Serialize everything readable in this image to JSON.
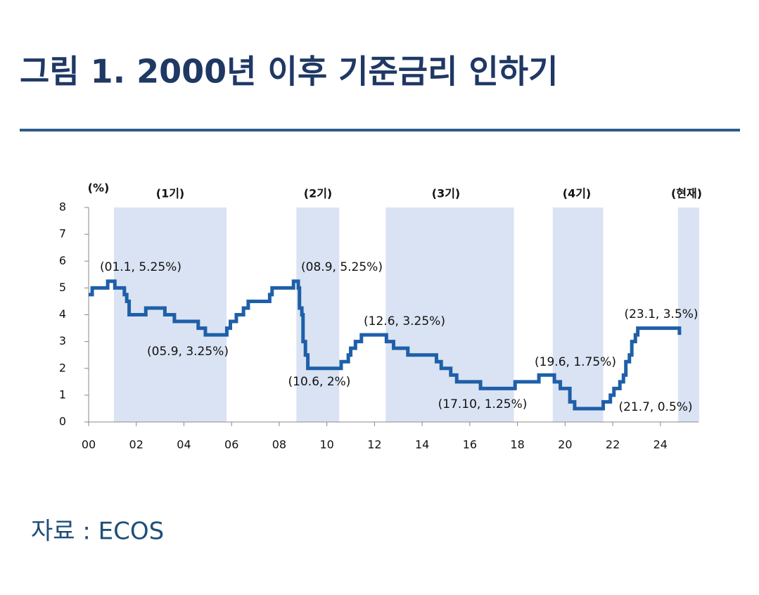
{
  "header": {
    "title": "그림 1. 2000년 이후 기준금리 인하기"
  },
  "chart_data": {
    "type": "step-line",
    "y_unit": "(%)",
    "x": [
      2000.0,
      2000.15,
      2000.8,
      2001.1,
      2001.5,
      2001.6,
      2001.7,
      2002.4,
      2003.2,
      2003.6,
      2004.6,
      2004.9,
      2005.8,
      2005.95,
      2006.2,
      2006.5,
      2006.7,
      2007.6,
      2007.7,
      2008.6,
      2008.8,
      2008.85,
      2008.95,
      2009.0,
      2009.1,
      2009.2,
      2010.6,
      2010.9,
      2011.0,
      2011.2,
      2011.45,
      2012.5,
      2012.8,
      2013.4,
      2014.6,
      2014.8,
      2015.2,
      2015.45,
      2016.45,
      2017.9,
      2018.9,
      2019.55,
      2019.8,
      2020.2,
      2020.4,
      2021.6,
      2021.9,
      2022.05,
      2022.3,
      2022.45,
      2022.55,
      2022.7,
      2022.8,
      2022.95,
      2023.05,
      2024.8
    ],
    "values": [
      4.75,
      5.0,
      5.25,
      5.0,
      4.75,
      4.5,
      4.0,
      4.25,
      4.0,
      3.75,
      3.5,
      3.25,
      3.5,
      3.75,
      4.0,
      4.25,
      4.5,
      4.75,
      5.0,
      5.25,
      5.0,
      4.25,
      4.0,
      3.0,
      2.5,
      2.0,
      2.25,
      2.5,
      2.75,
      3.0,
      3.25,
      3.0,
      2.75,
      2.5,
      2.25,
      2.0,
      1.75,
      1.5,
      1.25,
      1.5,
      1.75,
      1.5,
      1.25,
      0.75,
      0.5,
      0.75,
      1.0,
      1.25,
      1.5,
      1.75,
      2.25,
      2.5,
      3.0,
      3.25,
      3.5,
      3.25
    ],
    "color": "#1f5fa8",
    "xlim": [
      2000,
      2025.6
    ],
    "xticks": [
      {
        "value": 2000,
        "label": "00"
      },
      {
        "value": 2002,
        "label": "02"
      },
      {
        "value": 2004,
        "label": "04"
      },
      {
        "value": 2006,
        "label": "06"
      },
      {
        "value": 2008,
        "label": "08"
      },
      {
        "value": 2010,
        "label": "10"
      },
      {
        "value": 2012,
        "label": "12"
      },
      {
        "value": 2014,
        "label": "14"
      },
      {
        "value": 2016,
        "label": "16"
      },
      {
        "value": 2018,
        "label": "18"
      },
      {
        "value": 2020,
        "label": "20"
      },
      {
        "value": 2022,
        "label": "22"
      },
      {
        "value": 2024,
        "label": "24"
      }
    ],
    "ylim": [
      0,
      8
    ],
    "yticks": [
      0,
      1,
      2,
      3,
      4,
      5,
      6,
      7,
      8
    ],
    "periods": [
      {
        "label": "(1기)",
        "start": 2001.06,
        "end": 2005.79
      },
      {
        "label": "(2기)",
        "start": 2008.72,
        "end": 2010.52
      },
      {
        "label": "(3기)",
        "start": 2012.47,
        "end": 2017.85
      },
      {
        "label": "(4기)",
        "start": 2019.48,
        "end": 2021.6
      },
      {
        "label": "(현재)",
        "start": 2024.74,
        "end": 2025.63
      }
    ],
    "period_color": "#dae3f3",
    "annotations": [
      "(01.1, 5.25%)",
      "(05.9, 3.25%)",
      "(08.9, 5.25%)",
      "(10.6, 2%)",
      "(12.6, 3.25%)",
      "(17.10, 1.25%)",
      "(19.6, 1.75%)",
      "(21.7, 0.5%)",
      "(23.1, 3.5%)"
    ]
  },
  "footer": {
    "source": "자료 : ECOS"
  }
}
